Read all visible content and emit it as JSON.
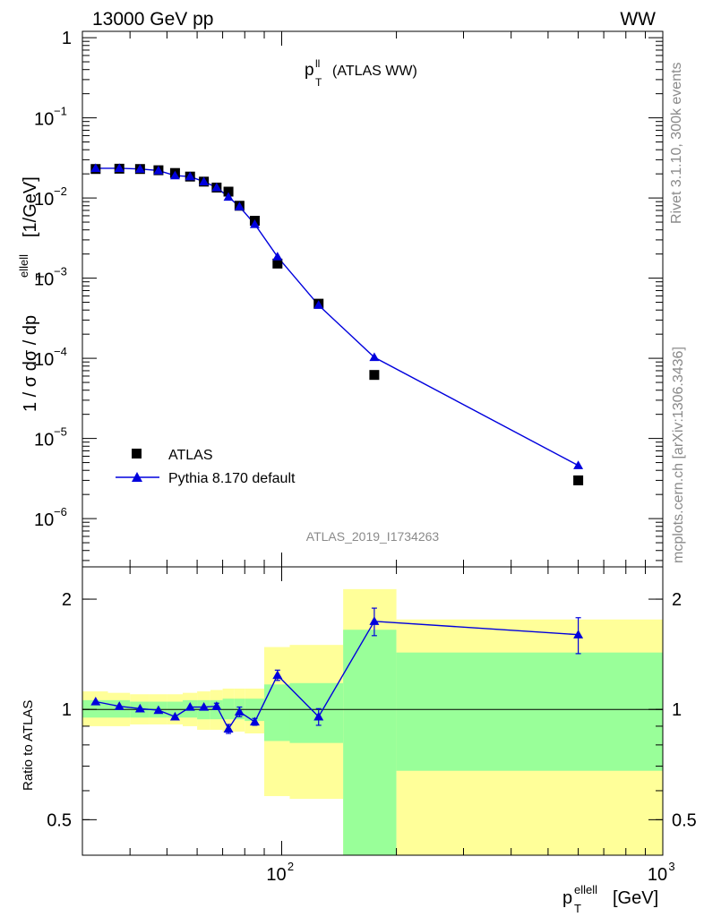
{
  "header": {
    "energy_label": "13000 GeV pp",
    "process_label": "WW",
    "plot_title": "p_T^ll (ATLAS WW)",
    "plot_title_main": "p",
    "plot_title_sub": "T",
    "plot_title_sup": "ll",
    "plot_title_rest": "(ATLAS WW)"
  },
  "side_labels": {
    "rivet": "Rivet 3.1.10,  300k events",
    "mcplots": "mcplots.cern.ch [arXiv:1306.3436]"
  },
  "watermark": "ATLAS_2019_I1734263",
  "legend": {
    "atlas_label": "ATLAS",
    "pythia_label": "Pythia 8.170 default"
  },
  "colors": {
    "mc_line": "#0000dd",
    "data_marker": "#000000",
    "band_outer": "#ffff99",
    "band_inner": "#99ff99"
  },
  "chart_data": [
    {
      "type": "scatter",
      "panel": "main",
      "ylabel": "1 / σ  dσ / dp_T^ellell [1/GeV]",
      "ylabel_parts": {
        "pre": "1 / σ  dσ / dp",
        "sub": "T",
        "sup": "ellell",
        "post": "[1/GeV]"
      },
      "xscale": "log",
      "yscale": "log",
      "xlim": [
        30,
        1000
      ],
      "ylim": [
        2.5e-07,
        1.2
      ],
      "yticks": [
        {
          "v": 1,
          "label": "1"
        },
        {
          "v": 0.1,
          "label": "10",
          "exp": "−1"
        },
        {
          "v": 0.01,
          "label": "10",
          "exp": "−2"
        },
        {
          "v": 0.001,
          "label": "10",
          "exp": "−3"
        },
        {
          "v": 0.0001,
          "label": "10",
          "exp": "−4"
        },
        {
          "v": 1e-05,
          "label": "10",
          "exp": "−5"
        },
        {
          "v": 1e-06,
          "label": "10",
          "exp": "−6"
        }
      ],
      "legend_position": "bottom-left",
      "series": [
        {
          "name": "ATLAS",
          "marker": "square",
          "points": [
            [
              32.5,
              0.023
            ],
            [
              37.5,
              0.0232
            ],
            [
              42.5,
              0.023
            ],
            [
              47.5,
              0.0222
            ],
            [
              52.5,
              0.0205
            ],
            [
              57.5,
              0.0185
            ],
            [
              62.5,
              0.016
            ],
            [
              67.5,
              0.0135
            ],
            [
              72.5,
              0.012
            ],
            [
              77.5,
              0.008
            ],
            [
              85,
              0.0052
            ],
            [
              97.5,
              0.00152
            ],
            [
              125,
              0.00048
            ],
            [
              175,
              6.2e-05
            ],
            [
              600,
              3e-06
            ]
          ]
        },
        {
          "name": "Pythia 8.170 default",
          "marker": "triangle",
          "points": [
            [
              32.5,
              0.0235
            ],
            [
              37.5,
              0.0235
            ],
            [
              42.5,
              0.023
            ],
            [
              47.5,
              0.022
            ],
            [
              52.5,
              0.019
            ],
            [
              57.5,
              0.0185
            ],
            [
              62.5,
              0.016
            ],
            [
              67.5,
              0.0135
            ],
            [
              72.5,
              0.0103
            ],
            [
              77.5,
              0.0078
            ],
            [
              85,
              0.0047
            ],
            [
              97.5,
              0.00185
            ],
            [
              125,
              0.00046
            ],
            [
              175,
              0.000103
            ],
            [
              600,
              4.6e-06
            ]
          ]
        }
      ]
    },
    {
      "type": "scatter",
      "panel": "ratio",
      "ylabel": "Ratio to ATLAS",
      "xlabel": "p_T^ellell [GeV]",
      "xlabel_parts": {
        "pre": "p",
        "sub": "T",
        "sup": "ellell",
        "post": "[GeV]"
      },
      "xscale": "log",
      "yscale": "log",
      "xlim": [
        30,
        1000
      ],
      "ylim": [
        0.4,
        2.45
      ],
      "reference_line": 1,
      "xticks": [
        {
          "v": 100,
          "label": "10",
          "exp": "2"
        },
        {
          "v": 1000,
          "label": "10",
          "exp": "3"
        }
      ],
      "yticks": [
        {
          "v": 0.5,
          "label": "0.5"
        },
        {
          "v": 1,
          "label": "1"
        },
        {
          "v": 2,
          "label": "2"
        }
      ],
      "bins": [
        {
          "lo": 30,
          "hi": 35,
          "outer": [
            0.9,
            1.12
          ],
          "inner": [
            0.95,
            1.06
          ]
        },
        {
          "lo": 35,
          "hi": 40,
          "outer": [
            0.9,
            1.11
          ],
          "inner": [
            0.95,
            1.06
          ]
        },
        {
          "lo": 40,
          "hi": 45,
          "outer": [
            0.91,
            1.1
          ],
          "inner": [
            0.95,
            1.05
          ]
        },
        {
          "lo": 45,
          "hi": 50,
          "outer": [
            0.91,
            1.1
          ],
          "inner": [
            0.95,
            1.05
          ]
        },
        {
          "lo": 50,
          "hi": 55,
          "outer": [
            0.91,
            1.1
          ],
          "inner": [
            0.95,
            1.05
          ]
        },
        {
          "lo": 55,
          "hi": 60,
          "outer": [
            0.9,
            1.11
          ],
          "inner": [
            0.95,
            1.06
          ]
        },
        {
          "lo": 60,
          "hi": 65,
          "outer": [
            0.88,
            1.12
          ],
          "inner": [
            0.94,
            1.06
          ]
        },
        {
          "lo": 65,
          "hi": 70,
          "outer": [
            0.88,
            1.13
          ],
          "inner": [
            0.94,
            1.06
          ]
        },
        {
          "lo": 70,
          "hi": 75,
          "outer": [
            0.87,
            1.14
          ],
          "inner": [
            0.94,
            1.07
          ]
        },
        {
          "lo": 75,
          "hi": 80,
          "outer": [
            0.87,
            1.14
          ],
          "inner": [
            0.94,
            1.07
          ]
        },
        {
          "lo": 80,
          "hi": 90,
          "outer": [
            0.86,
            1.14
          ],
          "inner": [
            0.93,
            1.07
          ]
        },
        {
          "lo": 90,
          "hi": 105,
          "outer": [
            0.58,
            1.48
          ],
          "inner": [
            0.82,
            1.17
          ]
        },
        {
          "lo": 105,
          "hi": 145,
          "outer": [
            0.57,
            1.5
          ],
          "inner": [
            0.81,
            1.18
          ]
        },
        {
          "lo": 145,
          "hi": 200,
          "outer": [
            0.36,
            2.13
          ],
          "inner": [
            0.37,
            1.65
          ]
        },
        {
          "lo": 200,
          "hi": 1000,
          "outer": [
            0.4,
            1.76
          ],
          "inner": [
            0.68,
            1.43
          ]
        }
      ],
      "series": [
        {
          "name": "Pythia 8.170 default",
          "marker": "triangle",
          "points": [
            [
              32.5,
              1.05,
              0
            ],
            [
              37.5,
              1.02,
              0
            ],
            [
              42.5,
              1.005,
              0
            ],
            [
              47.5,
              0.995,
              0
            ],
            [
              52.5,
              0.955,
              0
            ],
            [
              57.5,
              1.015,
              0
            ],
            [
              62.5,
              1.015,
              0
            ],
            [
              67.5,
              1.02,
              0.02
            ],
            [
              72.5,
              0.885,
              0.025
            ],
            [
              77.5,
              0.985,
              0.03
            ],
            [
              85,
              0.925,
              0.02
            ],
            [
              97.5,
              1.24,
              0.04
            ],
            [
              125,
              0.955,
              0.05
            ],
            [
              175,
              1.74,
              0.15
            ],
            [
              600,
              1.6,
              0.18
            ]
          ]
        }
      ]
    }
  ]
}
